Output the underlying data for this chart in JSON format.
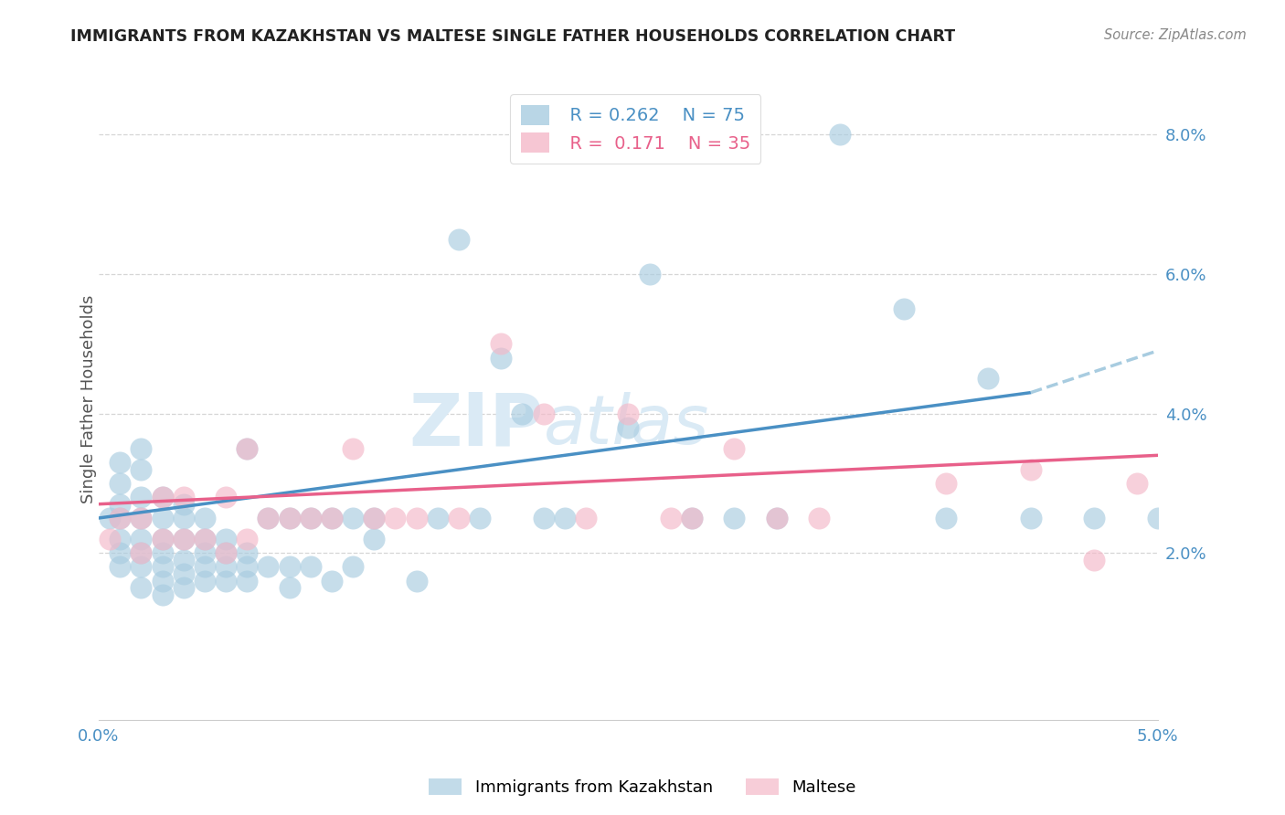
{
  "title": "IMMIGRANTS FROM KAZAKHSTAN VS MALTESE SINGLE FATHER HOUSEHOLDS CORRELATION CHART",
  "source": "Source: ZipAtlas.com",
  "ylabel": "Single Father Households",
  "right_yticks": [
    "2.0%",
    "4.0%",
    "6.0%",
    "8.0%"
  ],
  "right_ytick_vals": [
    0.02,
    0.04,
    0.06,
    0.08
  ],
  "xlim": [
    0.0,
    0.05
  ],
  "ylim": [
    -0.004,
    0.088
  ],
  "blue_color": "#a8cce0",
  "pink_color": "#f4b8c8",
  "blue_line_color": "#4a90c4",
  "pink_line_color": "#e8608a",
  "dashed_line_color": "#a8cce0",
  "legend_blue_r": "R = 0.262",
  "legend_blue_n": "N = 75",
  "legend_pink_r": "R =  0.171",
  "legend_pink_n": "N = 35",
  "blue_scatter_x": [
    0.0005,
    0.001,
    0.001,
    0.001,
    0.001,
    0.001,
    0.001,
    0.001,
    0.002,
    0.002,
    0.002,
    0.002,
    0.002,
    0.002,
    0.002,
    0.002,
    0.003,
    0.003,
    0.003,
    0.003,
    0.003,
    0.003,
    0.003,
    0.004,
    0.004,
    0.004,
    0.004,
    0.004,
    0.004,
    0.005,
    0.005,
    0.005,
    0.005,
    0.005,
    0.006,
    0.006,
    0.006,
    0.006,
    0.007,
    0.007,
    0.007,
    0.007,
    0.008,
    0.008,
    0.009,
    0.009,
    0.009,
    0.01,
    0.01,
    0.011,
    0.011,
    0.012,
    0.012,
    0.013,
    0.013,
    0.015,
    0.016,
    0.017,
    0.018,
    0.019,
    0.02,
    0.021,
    0.022,
    0.025,
    0.026,
    0.028,
    0.03,
    0.032,
    0.035,
    0.038,
    0.04,
    0.042,
    0.044,
    0.047,
    0.05
  ],
  "blue_scatter_y": [
    0.025,
    0.018,
    0.02,
    0.022,
    0.025,
    0.027,
    0.03,
    0.033,
    0.015,
    0.018,
    0.02,
    0.022,
    0.025,
    0.028,
    0.032,
    0.035,
    0.014,
    0.016,
    0.018,
    0.02,
    0.022,
    0.025,
    0.028,
    0.015,
    0.017,
    0.019,
    0.022,
    0.025,
    0.027,
    0.016,
    0.018,
    0.02,
    0.022,
    0.025,
    0.016,
    0.018,
    0.02,
    0.022,
    0.016,
    0.018,
    0.02,
    0.035,
    0.018,
    0.025,
    0.015,
    0.018,
    0.025,
    0.018,
    0.025,
    0.016,
    0.025,
    0.018,
    0.025,
    0.022,
    0.025,
    0.016,
    0.025,
    0.065,
    0.025,
    0.048,
    0.04,
    0.025,
    0.025,
    0.038,
    0.06,
    0.025,
    0.025,
    0.025,
    0.08,
    0.055,
    0.025,
    0.045,
    0.025,
    0.025,
    0.025
  ],
  "pink_scatter_x": [
    0.0005,
    0.001,
    0.002,
    0.002,
    0.003,
    0.003,
    0.004,
    0.004,
    0.005,
    0.006,
    0.006,
    0.007,
    0.007,
    0.008,
    0.009,
    0.01,
    0.011,
    0.012,
    0.013,
    0.014,
    0.015,
    0.017,
    0.019,
    0.021,
    0.023,
    0.025,
    0.027,
    0.028,
    0.03,
    0.032,
    0.034,
    0.04,
    0.044,
    0.047,
    0.049
  ],
  "pink_scatter_y": [
    0.022,
    0.025,
    0.02,
    0.025,
    0.022,
    0.028,
    0.022,
    0.028,
    0.022,
    0.02,
    0.028,
    0.022,
    0.035,
    0.025,
    0.025,
    0.025,
    0.025,
    0.035,
    0.025,
    0.025,
    0.025,
    0.025,
    0.05,
    0.04,
    0.025,
    0.04,
    0.025,
    0.025,
    0.035,
    0.025,
    0.025,
    0.03,
    0.032,
    0.019,
    0.03
  ],
  "blue_trend_x0": 0.0,
  "blue_trend_x1": 0.044,
  "blue_trend_y0": 0.025,
  "blue_trend_y1": 0.043,
  "dashed_trend_x0": 0.044,
  "dashed_trend_x1": 0.05,
  "dashed_trend_y0": 0.043,
  "dashed_trend_y1": 0.049,
  "pink_trend_x0": 0.0,
  "pink_trend_x1": 0.05,
  "pink_trend_y0": 0.027,
  "pink_trend_y1": 0.034,
  "background_color": "#ffffff",
  "grid_color": "#cccccc",
  "title_color": "#222222",
  "axis_label_color": "#4a90c4",
  "watermark_zip": "ZIP",
  "watermark_atlas": "atlas",
  "watermark_color": "#daeaf5",
  "watermark_fontsize": 58
}
